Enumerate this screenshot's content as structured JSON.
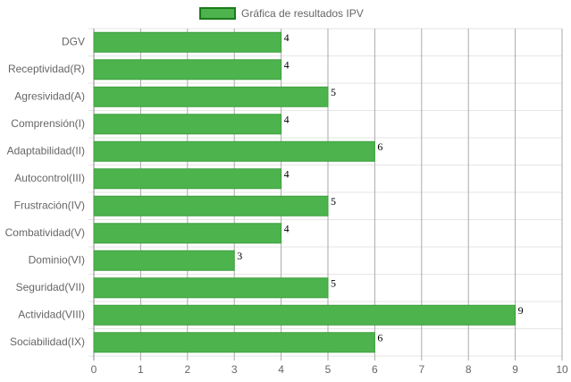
{
  "chart_data": {
    "type": "bar",
    "orientation": "horizontal",
    "series": [
      {
        "name": "Gráfica de resultados IPV",
        "color": "#4db34d",
        "values": [
          4,
          4,
          5,
          4,
          6,
          4,
          5,
          4,
          3,
          5,
          9,
          6
        ]
      }
    ],
    "categories": [
      "DGV",
      "Receptividad(R)",
      "Agresividad(A)",
      "Comprensión(I)",
      "Adaptabilidad(II)",
      "Autocontrol(III)",
      "Frustración(IV)",
      "Combatividad(V)",
      "Dominio(VI)",
      "Seguridad(VII)",
      "Actividad(VIII)",
      "Sociabilidad(IX)"
    ],
    "xlim": [
      0,
      10
    ],
    "xticks": [
      0,
      1,
      2,
      3,
      4,
      5,
      6,
      7,
      8,
      9,
      10
    ],
    "grid": true,
    "data_labels": true,
    "legend": "top"
  }
}
